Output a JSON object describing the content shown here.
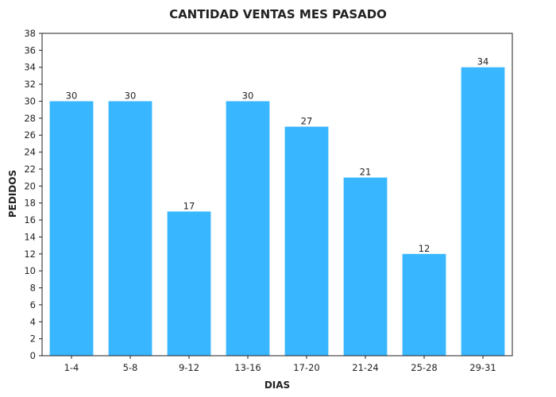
{
  "chart_data": {
    "type": "bar",
    "title": "CANTIDAD VENTAS MES PASADO",
    "xlabel": "DIAS",
    "ylabel": "PEDIDOS",
    "categories": [
      "1-4",
      "5-8",
      "9-12",
      "13-16",
      "17-20",
      "21-24",
      "25-28",
      "29-31"
    ],
    "values": [
      30,
      30,
      17,
      30,
      27,
      21,
      12,
      34
    ],
    "ylim": [
      0,
      38
    ],
    "yticks": [
      0,
      2,
      4,
      6,
      8,
      10,
      12,
      14,
      16,
      18,
      20,
      22,
      24,
      26,
      28,
      30,
      32,
      34,
      36,
      38
    ],
    "grid": false,
    "bar_color": "#38b6ff",
    "data_labels": true
  }
}
